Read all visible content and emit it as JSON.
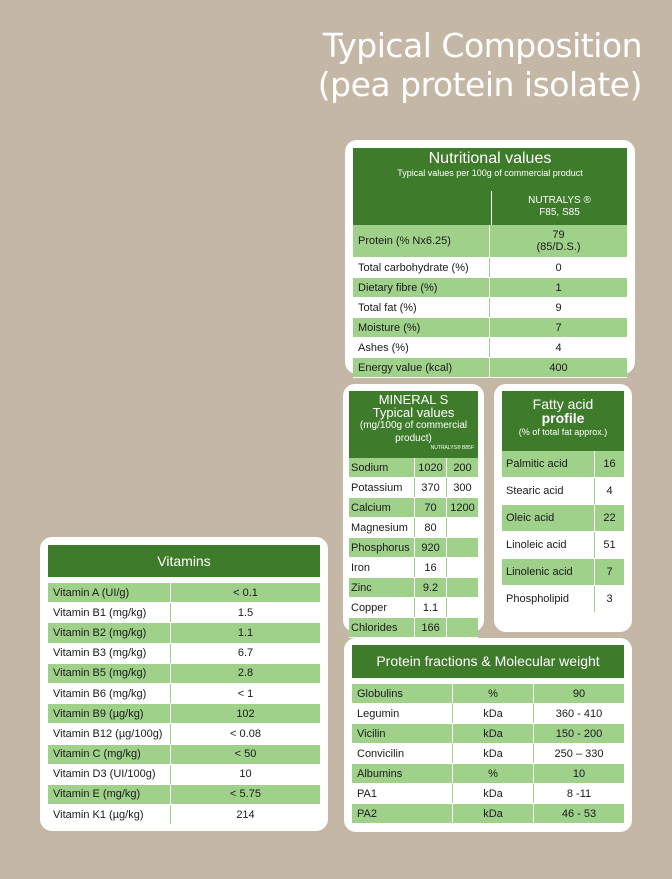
{
  "title": {
    "line1": "Typical Composition",
    "line2": "(pea protein isolate)"
  },
  "nutrition": {
    "title": "Nutritional values",
    "subtitle": "Typical values per 100g of commercial product",
    "column": "NUTRALYS ®\nF85, S85",
    "rows": [
      {
        "label": "Protein (% Nx6.25)",
        "value": "79\n(85/D.S.)"
      },
      {
        "label": "Total carbohydrate (%)",
        "value": "0"
      },
      {
        "label": "Dietary fibre (%)",
        "value": "1"
      },
      {
        "label": "Total fat (%)",
        "value": "9"
      },
      {
        "label": "Moisture (%)",
        "value": "7"
      },
      {
        "label": "Ashes (%)",
        "value": "4"
      },
      {
        "label": "Energy value (kcal)",
        "value": "400"
      }
    ]
  },
  "minerals": {
    "title": "MINERAL S",
    "subtitle": "Typical values",
    "unit": "(mg/100g of commercial product)",
    "tag": "NUTRALYS® B85F",
    "rows": [
      {
        "label": "Sodium",
        "v1": "1020",
        "v2": "200"
      },
      {
        "label": "Potassium",
        "v1": "370",
        "v2": "300"
      },
      {
        "label": "Calcium",
        "v1": "70",
        "v2": "1200"
      },
      {
        "label": "Magnesium",
        "v1": "80",
        "v2": ""
      },
      {
        "label": "Phosphorus",
        "v1": "920",
        "v2": ""
      },
      {
        "label": "Iron",
        "v1": "16",
        "v2": ""
      },
      {
        "label": "Zinc",
        "v1": "9.2",
        "v2": ""
      },
      {
        "label": "Copper",
        "v1": "1.1",
        "v2": ""
      },
      {
        "label": "Chlorides",
        "v1": "166",
        "v2": ""
      }
    ]
  },
  "fatty": {
    "title": "Fatty acid",
    "title_bold": "profile",
    "subtitle": "(% of total fat approx.)",
    "rows": [
      {
        "label": "Palmitic acid",
        "value": "16"
      },
      {
        "label": "Stearic acid",
        "value": "4"
      },
      {
        "label": "Oleic acid",
        "value": "22"
      },
      {
        "label": "Linoleic acid",
        "value": "51"
      },
      {
        "label": "Linolenic acid",
        "value": "7"
      },
      {
        "label": "Phospholipid",
        "value": "3"
      }
    ]
  },
  "vitamins": {
    "title": "Vitamins",
    "rows": [
      {
        "label": "Vitamin A (UI/g)",
        "value": "< 0.1"
      },
      {
        "label": "Vitamin B1 (mg/kg)",
        "value": "1.5"
      },
      {
        "label": "Vitamin B2 (mg/kg)",
        "value": "1.1"
      },
      {
        "label": "Vitamin B3 (mg/kg)",
        "value": "6.7"
      },
      {
        "label": "Vitamin B5 (mg/kg)",
        "value": "2.8"
      },
      {
        "label": "Vitamin B6 (mg/kg)",
        "value": "< 1"
      },
      {
        "label": "Vitamin B9 (µg/kg)",
        "value": "102"
      },
      {
        "label": "Vitamin B12 (µg/100g)",
        "value": "< 0.08"
      },
      {
        "label": "Vitamin C (mg/kg)",
        "value": "< 50"
      },
      {
        "label": "Vitamin D3 (UI/100g)",
        "value": "10"
      },
      {
        "label": "Vitamin E (mg/kg)",
        "value": "< 5.75"
      },
      {
        "label": "Vitamin K1 (µg/kg)",
        "value": "214"
      }
    ]
  },
  "protein": {
    "title": "Protein fractions & Molecular weight",
    "rows": [
      {
        "label": "Globulins",
        "unit": "%",
        "value": "90"
      },
      {
        "label": "Legumin",
        "unit": "kDa",
        "value": "360 - 410"
      },
      {
        "label": "Vicilin",
        "unit": "kDa",
        "value": "150 - 200"
      },
      {
        "label": "Convicilin",
        "unit": "kDa",
        "value": "250 – 330"
      },
      {
        "label": "Albumins",
        "unit": "%",
        "value": "10"
      },
      {
        "label": "PA1",
        "unit": "kDa",
        "value": "8 -11"
      },
      {
        "label": "PA2",
        "unit": "kDa",
        "value": "46 - 53"
      }
    ]
  }
}
